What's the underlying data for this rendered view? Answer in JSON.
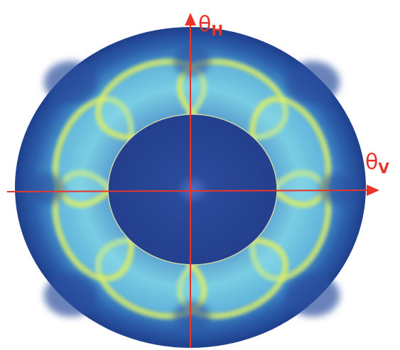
{
  "axes": {
    "vertical": {
      "symbol": "θ",
      "subscript": "H"
    },
    "horizontal": {
      "symbol": "θ",
      "subscript": "V"
    }
  }
}
